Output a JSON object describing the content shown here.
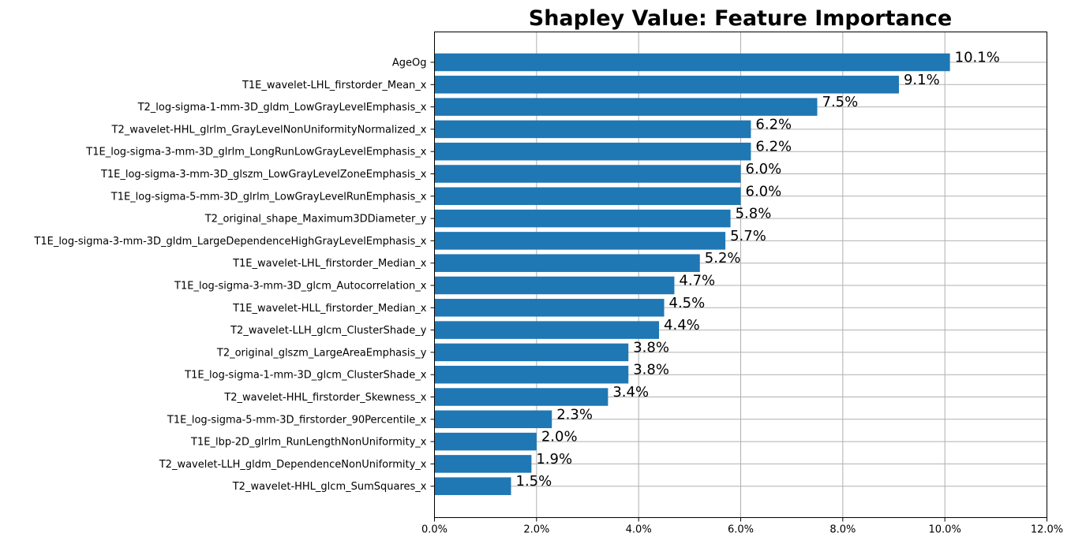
{
  "chart_data": {
    "type": "bar",
    "orientation": "horizontal",
    "title": "Shapley Value: Feature Importance",
    "xlabel": "",
    "ylabel": "",
    "xlim": [
      0,
      12
    ],
    "x_ticks": [
      0,
      2,
      4,
      6,
      8,
      10,
      12
    ],
    "x_tick_labels": [
      "0.0%",
      "2.0%",
      "4.0%",
      "6.0%",
      "8.0%",
      "10.0%",
      "12.0%"
    ],
    "grid": true,
    "bar_color": "#1f77b4",
    "categories": [
      "AgeOg",
      "T1E_wavelet-LHL_firstorder_Mean_x",
      "T2_log-sigma-1-mm-3D_gldm_LowGrayLevelEmphasis_x",
      "T2_wavelet-HHL_glrlm_GrayLevelNonUniformityNormalized_x",
      "T1E_log-sigma-3-mm-3D_glrlm_LongRunLowGrayLevelEmphasis_x",
      "T1E_log-sigma-3-mm-3D_glszm_LowGrayLevelZoneEmphasis_x",
      "T1E_log-sigma-5-mm-3D_glrlm_LowGrayLevelRunEmphasis_x",
      "T2_original_shape_Maximum3DDiameter_y",
      "T1E_log-sigma-3-mm-3D_gldm_LargeDependenceHighGrayLevelEmphasis_x",
      "T1E_wavelet-LHL_firstorder_Median_x",
      "T1E_log-sigma-3-mm-3D_glcm_Autocorrelation_x",
      "T1E_wavelet-HLL_firstorder_Median_x",
      "T2_wavelet-LLH_glcm_ClusterShade_y",
      "T2_original_glszm_LargeAreaEmphasis_y",
      "T1E_log-sigma-1-mm-3D_glcm_ClusterShade_x",
      "T2_wavelet-HHL_firstorder_Skewness_x",
      "T1E_log-sigma-5-mm-3D_firstorder_90Percentile_x",
      "T1E_lbp-2D_glrlm_RunLengthNonUniformity_x",
      "T2_wavelet-LLH_gldm_DependenceNonUniformity_x",
      "T2_wavelet-HHL_glcm_SumSquares_x"
    ],
    "values": [
      10.1,
      9.1,
      7.5,
      6.2,
      6.2,
      6.0,
      6.0,
      5.8,
      5.7,
      5.2,
      4.7,
      4.5,
      4.4,
      3.8,
      3.8,
      3.4,
      2.3,
      2.0,
      1.9,
      1.5
    ],
    "data_labels": [
      "10.1%",
      "9.1%",
      "7.5%",
      "6.2%",
      "6.2%",
      "6.0%",
      "6.0%",
      "5.8%",
      "5.7%",
      "5.2%",
      "4.7%",
      "4.5%",
      "4.4%",
      "3.8%",
      "3.8%",
      "3.4%",
      "2.3%",
      "2.0%",
      "1.9%",
      "1.5%"
    ]
  }
}
